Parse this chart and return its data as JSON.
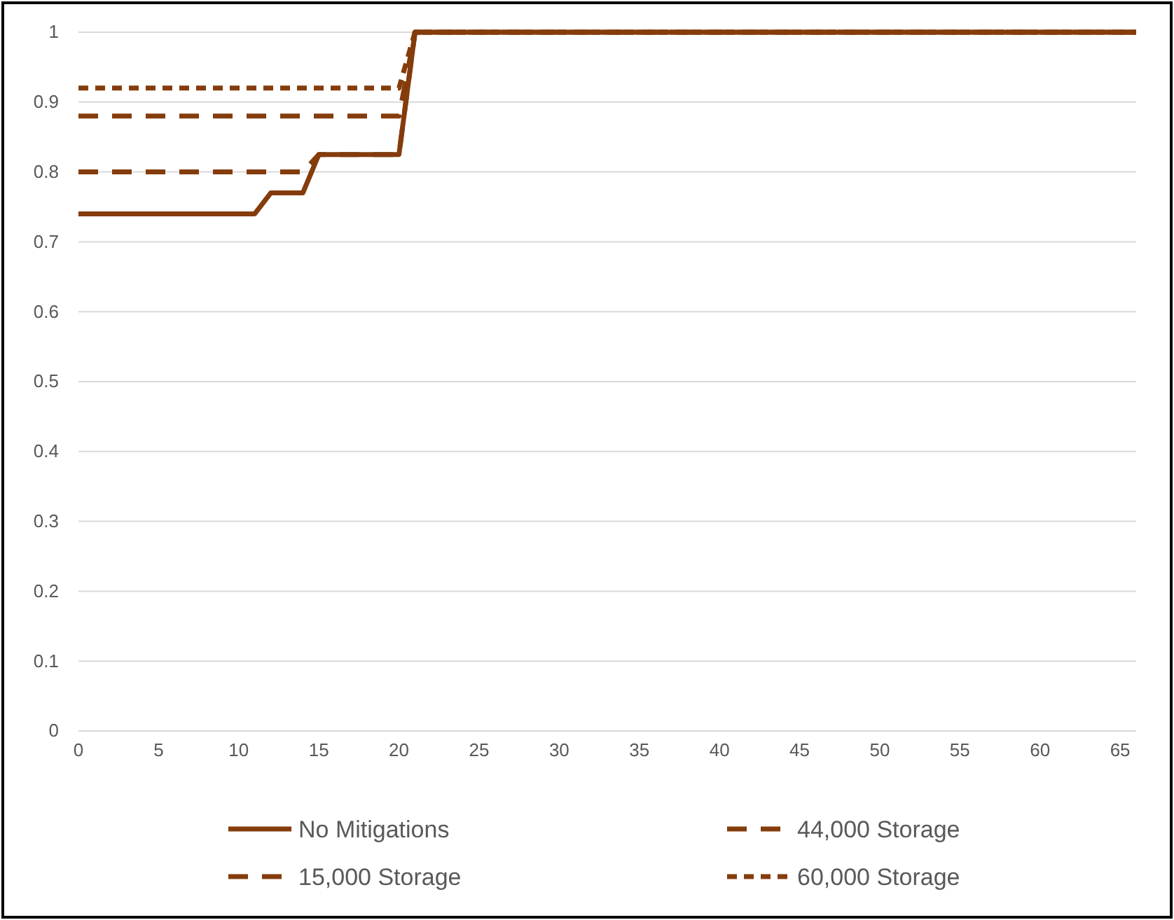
{
  "chart_data": {
    "type": "line",
    "xlim": [
      0,
      66
    ],
    "xticks": [
      0,
      5,
      10,
      15,
      20,
      25,
      30,
      35,
      40,
      45,
      50,
      55,
      60,
      65
    ],
    "ylim": [
      0,
      1
    ],
    "yticks": [
      0,
      0.1,
      0.2,
      0.3,
      0.4,
      0.5,
      0.6,
      0.7,
      0.8,
      0.9,
      1
    ],
    "grid": "y",
    "legend": "bottom",
    "marker": "none",
    "series": [
      {
        "name": "No Mitigations",
        "color": "#843c0c",
        "line_style": "solid",
        "x": [
          0,
          11,
          12,
          14,
          15,
          20,
          21,
          66
        ],
        "values": [
          0.74,
          0.74,
          0.77,
          0.77,
          0.825,
          0.825,
          1,
          1
        ]
      },
      {
        "name": "44,000 Storage",
        "color": "#843c0c",
        "line_style": "dashed",
        "x": [
          0,
          20,
          21,
          66
        ],
        "values": [
          0.88,
          0.88,
          1,
          1
        ]
      },
      {
        "name": "15,000 Storage",
        "color": "#843c0c",
        "line_style": "dashed",
        "x": [
          0,
          14,
          15,
          20,
          21,
          66
        ],
        "values": [
          0.8,
          0.8,
          0.825,
          0.825,
          1,
          1
        ]
      },
      {
        "name": "60,000 Storage",
        "color": "#843c0c",
        "line_style": "dotted",
        "x": [
          0,
          20,
          21,
          66
        ],
        "values": [
          0.92,
          0.92,
          1,
          1
        ]
      }
    ]
  }
}
